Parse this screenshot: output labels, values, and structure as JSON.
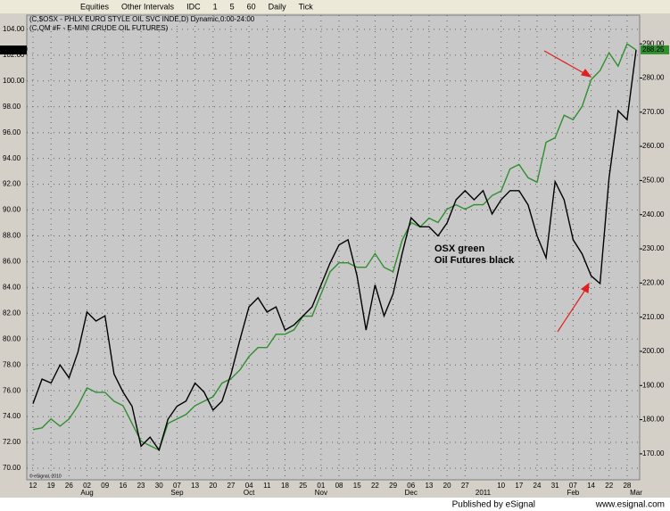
{
  "toolbar": {
    "items": [
      "Equities",
      "Other Intervals",
      "IDC",
      "1",
      "5",
      "60",
      "Daily",
      "Tick"
    ]
  },
  "chart_data": {
    "type": "line",
    "legend": [
      "(C,$OSX - PHLX EURO STYLE OIL SVC INDE,D) Dynamic,0:00-24:00",
      "(C,QM #F - E-MINI CRUDE OIL FUTURES)"
    ],
    "categories": [
      "12",
      null,
      "19",
      null,
      "26",
      null,
      "02",
      null,
      "09",
      null,
      "16",
      null,
      "23",
      null,
      "30",
      null,
      "07",
      null,
      "13",
      null,
      "20",
      null,
      "27",
      null,
      "04",
      null,
      "11",
      null,
      "18",
      null,
      "25",
      null,
      "01",
      null,
      "08",
      null,
      "15",
      null,
      "22",
      null,
      "29",
      null,
      "06",
      null,
      "13",
      null,
      "20",
      null,
      "27",
      null,
      null,
      null,
      "10",
      null,
      "17",
      null,
      "24",
      null,
      "31",
      null,
      "07",
      null,
      "14",
      null,
      "22",
      null,
      "28",
      null
    ],
    "category_groups": [
      null,
      null,
      null,
      null,
      null,
      null,
      "Aug",
      null,
      null,
      null,
      null,
      null,
      null,
      null,
      null,
      null,
      "Sep",
      null,
      null,
      null,
      null,
      null,
      null,
      null,
      "Oct",
      null,
      null,
      null,
      null,
      null,
      null,
      null,
      "Nov",
      null,
      null,
      null,
      null,
      null,
      null,
      null,
      null,
      null,
      "Dec",
      null,
      null,
      null,
      null,
      null,
      null,
      null,
      "2011",
      null,
      null,
      null,
      null,
      null,
      null,
      null,
      null,
      null,
      "Feb",
      null,
      null,
      null,
      null,
      null,
      null,
      "Mar"
    ],
    "series": [
      {
        "name": "OSX",
        "color": "#2f8f2f",
        "axis": "y2",
        "values": [
          177.1,
          177.6,
          180.2,
          178.1,
          180.2,
          184.1,
          189.3,
          188.0,
          188.0,
          185.4,
          184.1,
          178.9,
          173.7,
          172.4,
          171.1,
          178.9,
          180.2,
          181.5,
          184.1,
          185.4,
          186.7,
          190.7,
          192.0,
          194.6,
          198.5,
          201.1,
          201.1,
          205.0,
          205.0,
          206.3,
          210.3,
          210.3,
          216.8,
          223.3,
          225.9,
          225.9,
          224.6,
          224.6,
          228.6,
          224.6,
          223.3,
          232.5,
          237.7,
          236.4,
          239.0,
          237.7,
          241.6,
          242.9,
          241.6,
          242.9,
          242.9,
          245.6,
          246.9,
          253.4,
          254.7,
          250.8,
          249.5,
          261.2,
          262.5,
          269.1,
          267.8,
          271.7,
          279.5,
          282.2,
          287.4,
          283.5,
          290.0,
          288.25
        ]
      },
      {
        "name": "Oil Futures",
        "color": "#000000",
        "axis": "y",
        "current_label": "102.400",
        "values": [
          75.0,
          76.9,
          76.6,
          78.0,
          77.0,
          79.0,
          82.1,
          81.4,
          81.8,
          77.3,
          75.9,
          74.8,
          71.7,
          72.4,
          71.4,
          73.8,
          74.8,
          75.2,
          76.6,
          75.9,
          74.5,
          75.2,
          77.3,
          80.0,
          82.5,
          83.2,
          82.1,
          82.5,
          80.7,
          81.1,
          81.8,
          82.5,
          84.2,
          85.9,
          87.3,
          87.7,
          84.9,
          80.7,
          84.2,
          81.8,
          83.5,
          86.6,
          89.4,
          88.7,
          88.7,
          88.0,
          89.0,
          90.8,
          91.5,
          90.8,
          91.5,
          89.7,
          90.8,
          91.5,
          91.5,
          90.4,
          88.0,
          86.3,
          92.2,
          90.8,
          87.7,
          86.6,
          84.9,
          84.3,
          92.5,
          97.7,
          97.0,
          102.4
        ]
      }
    ],
    "ylim": [
      69.1,
      105.1
    ],
    "yticks": [
      {
        "value": 70,
        "label": "70.00"
      },
      {
        "value": 72,
        "label": "72.00"
      },
      {
        "value": 74,
        "label": "74.00"
      },
      {
        "value": 76,
        "label": "76.00"
      },
      {
        "value": 78,
        "label": "78.00"
      },
      {
        "value": 80,
        "label": "80.00"
      },
      {
        "value": 82,
        "label": "82.00"
      },
      {
        "value": 84,
        "label": "84.00"
      },
      {
        "value": 86,
        "label": "86.00"
      },
      {
        "value": 88,
        "label": "88.00"
      },
      {
        "value": 90,
        "label": "90.00"
      },
      {
        "value": 92,
        "label": "92.00"
      },
      {
        "value": 94,
        "label": "94.00"
      },
      {
        "value": 96,
        "label": "96.00"
      },
      {
        "value": 98,
        "label": "98.00"
      },
      {
        "value": 100,
        "label": "100.00"
      },
      {
        "value": 102,
        "label": "102.00"
      },
      {
        "value": 104,
        "label": "104.00"
      }
    ],
    "y2lim": [
      162.4,
      298.4
    ],
    "y2ticks": [
      {
        "value": 170,
        "label": "170.00"
      },
      {
        "value": 180,
        "label": "180.00"
      },
      {
        "value": 190,
        "label": "190.00"
      },
      {
        "value": 200,
        "label": "200.00"
      },
      {
        "value": 210,
        "label": "210.00"
      },
      {
        "value": 220,
        "label": "220.00"
      },
      {
        "value": 230,
        "label": "230.00"
      },
      {
        "value": 240,
        "label": "240.00"
      },
      {
        "value": 250,
        "label": "250.00"
      },
      {
        "value": 260,
        "label": "260.00"
      },
      {
        "value": 270,
        "label": "270.00"
      },
      {
        "value": 280,
        "label": "280.00"
      },
      {
        "value": 290,
        "label": "290.00"
      }
    ],
    "grid": true,
    "annotations": [
      "OSX green",
      "Oil Futures black"
    ],
    "watermark": "© eSignal, 2010"
  },
  "footer": {
    "publisher": "Published by eSignal",
    "url": "www.esignal.com"
  }
}
